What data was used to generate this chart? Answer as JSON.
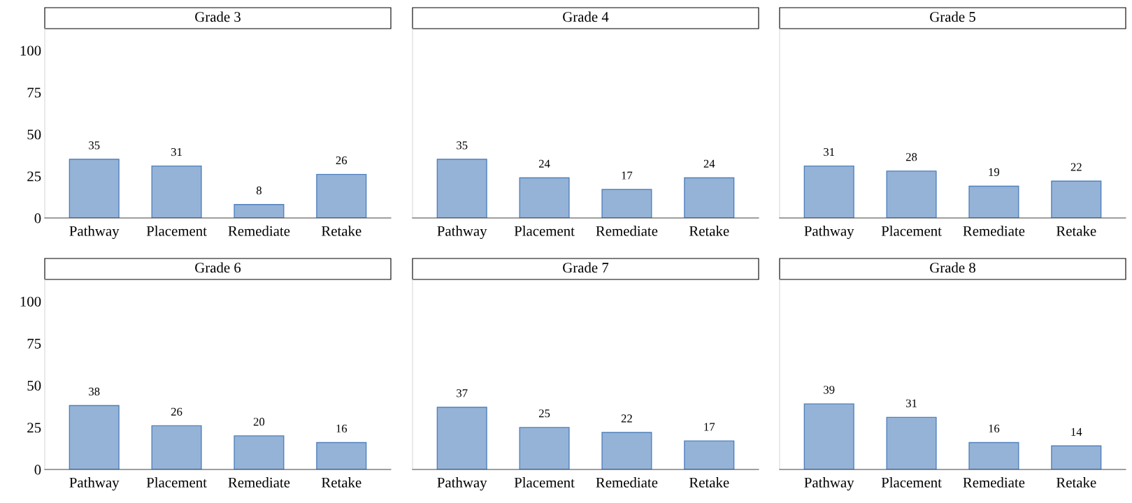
{
  "chart_data": [
    {
      "type": "bar",
      "title": "Grade 3",
      "categories": [
        "Pathway",
        "Placement",
        "Remediate",
        "Retake"
      ],
      "values": [
        35,
        31,
        8,
        26
      ],
      "color": "#95b3d7",
      "ylim": [
        0,
        113
      ],
      "yticks": [
        0,
        25,
        50,
        75,
        100
      ],
      "data_labels": true,
      "grid": false,
      "legend": false
    },
    {
      "type": "bar",
      "title": "Grade 4",
      "categories": [
        "Pathway",
        "Placement",
        "Remediate",
        "Retake"
      ],
      "values": [
        35,
        24,
        17,
        24
      ],
      "color": "#95b3d7",
      "ylim": [
        0,
        113
      ],
      "yticks": [
        0,
        25,
        50,
        75,
        100
      ],
      "data_labels": true,
      "grid": false,
      "legend": false,
      "tick_labels": "x"
    },
    {
      "type": "bar",
      "title": "Grade 5",
      "categories": [
        "Pathway",
        "Placement",
        "Remediate",
        "Retake"
      ],
      "values": [
        31,
        28,
        19,
        22
      ],
      "color": "#95b3d7",
      "ylim": [
        0,
        113
      ],
      "yticks": [
        0,
        25,
        50,
        75,
        100
      ],
      "data_labels": true,
      "grid": false,
      "legend": false,
      "tick_labels": "x"
    },
    {
      "type": "bar",
      "title": "Grade 6",
      "categories": [
        "Pathway",
        "Placement",
        "Remediate",
        "Retake"
      ],
      "values": [
        38,
        26,
        20,
        16
      ],
      "color": "#95b3d7",
      "ylim": [
        0,
        113
      ],
      "yticks": [
        0,
        25,
        50,
        75,
        100
      ],
      "data_labels": true,
      "grid": false,
      "legend": false
    },
    {
      "type": "bar",
      "title": "Grade 7",
      "categories": [
        "Pathway",
        "Placement",
        "Remediate",
        "Retake"
      ],
      "values": [
        37,
        25,
        22,
        17
      ],
      "color": "#95b3d7",
      "ylim": [
        0,
        113
      ],
      "yticks": [
        0,
        25,
        50,
        75,
        100
      ],
      "data_labels": true,
      "grid": false,
      "legend": false,
      "tick_labels": "x"
    },
    {
      "type": "bar",
      "title": "Grade 8",
      "categories": [
        "Pathway",
        "Placement",
        "Remediate",
        "Retake"
      ],
      "values": [
        39,
        31,
        16,
        14
      ],
      "color": "#95b3d7",
      "ylim": [
        0,
        113
      ],
      "yticks": [
        0,
        25,
        50,
        75,
        100
      ],
      "data_labels": true,
      "grid": false,
      "legend": false,
      "tick_labels": "x"
    }
  ]
}
